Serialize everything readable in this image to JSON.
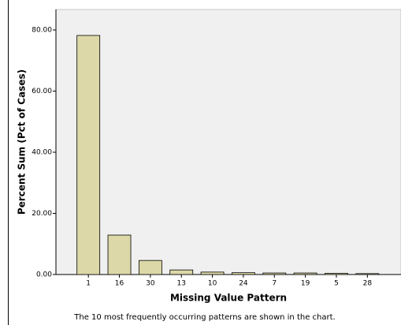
{
  "chart_data": {
    "type": "bar",
    "x_label": "Missing Value Pattern",
    "y_label": "Percent Sum (Pct of Cases)",
    "footnote": "The 10 most frequently occurring patterns are shown in the chart.",
    "categories": [
      "1",
      "16",
      "30",
      "13",
      "10",
      "24",
      "7",
      "19",
      "5",
      "28"
    ],
    "values": [
      78.2,
      12.9,
      4.6,
      1.5,
      0.8,
      0.6,
      0.5,
      0.5,
      0.4,
      0.3
    ],
    "color": "#dcd8a8",
    "ylim": [
      0,
      86.7
    ],
    "yticks": [
      {
        "value": 0,
        "label": "0.00"
      },
      {
        "value": 20,
        "label": "20.00"
      },
      {
        "value": 40,
        "label": "40.00"
      },
      {
        "value": 60,
        "label": "60.00"
      },
      {
        "value": 80,
        "label": "80.00"
      }
    ],
    "grid": false
  }
}
